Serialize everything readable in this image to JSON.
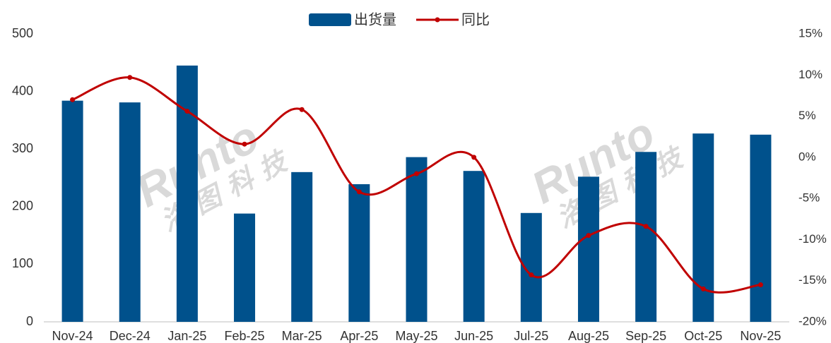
{
  "chart_data": {
    "type": "bar_line",
    "categories": [
      "Nov-24",
      "Dec-24",
      "Jan-25",
      "Feb-25",
      "Mar-25",
      "Apr-25",
      "May-25",
      "Jun-25",
      "Jul-25",
      "Aug-25",
      "Sep-25",
      "Oct-25",
      "Nov-25"
    ],
    "series": [
      {
        "name": "出货量",
        "type": "bar",
        "color": "#00518c",
        "values": [
          384,
          381,
          445,
          188,
          260,
          239,
          286,
          262,
          189,
          252,
          295,
          327,
          325
        ]
      },
      {
        "name": "同比",
        "type": "line",
        "axis": "y2",
        "color": "#c00000",
        "values": [
          7.0,
          9.7,
          5.6,
          1.6,
          5.8,
          -4.2,
          -2.0,
          0.0,
          -14.3,
          -9.5,
          -8.4,
          -16.0,
          -15.5
        ]
      }
    ],
    "ylim": [
      0,
      500
    ],
    "yticks": [
      0,
      100,
      200,
      300,
      400,
      500
    ],
    "y2lim": [
      -20,
      15
    ],
    "y2ticks": [
      {
        "value": -20,
        "label": "-20%"
      },
      {
        "value": -15,
        "label": "-15%"
      },
      {
        "value": -10,
        "label": "-10%"
      },
      {
        "value": -5,
        "label": "-5%"
      },
      {
        "value": 0,
        "label": "0%"
      },
      {
        "value": 5,
        "label": "5%"
      },
      {
        "value": 10,
        "label": "10%"
      },
      {
        "value": 15,
        "label": "15%"
      }
    ],
    "legend": "top",
    "watermark": [
      "Runto",
      "洛图科技"
    ]
  }
}
